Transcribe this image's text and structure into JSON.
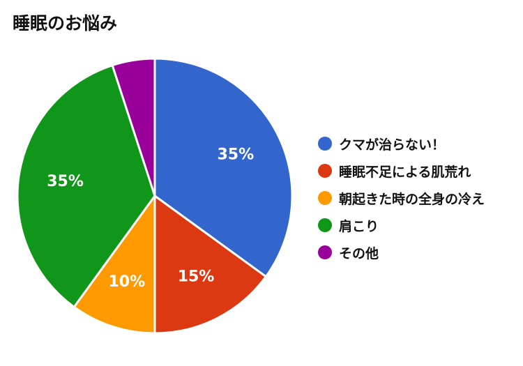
{
  "chart_data": {
    "type": "pie",
    "title": "睡眠のお悩み",
    "legend_position": "right",
    "slices": [
      {
        "name": "クマが治らない！",
        "value": 35,
        "label": "35%",
        "color": "#3366cc"
      },
      {
        "name": "睡眠不足による肌荒れ",
        "value": 15,
        "label": "15%",
        "color": "#dc3912"
      },
      {
        "name": "朝起きた時の全身の冷え",
        "value": 10,
        "label": "10%",
        "color": "#ff9900"
      },
      {
        "name": "肩こり",
        "value": 35,
        "label": "35%",
        "color": "#109618"
      },
      {
        "name": "その他",
        "value": 5,
        "label": "",
        "color": "#990099"
      }
    ]
  }
}
